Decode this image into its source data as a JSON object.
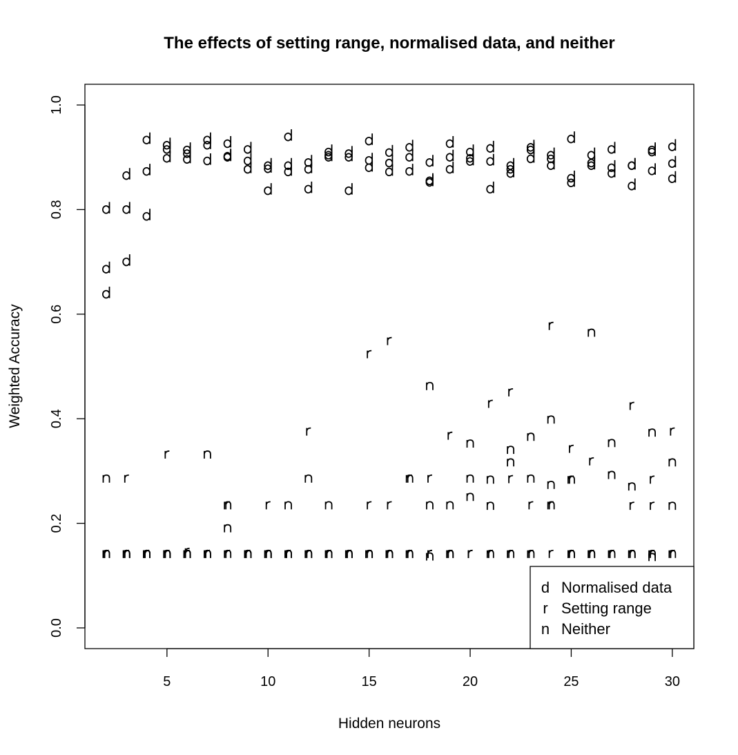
{
  "chart_data": {
    "type": "scatter",
    "title": "The effects of setting range, normalised data, and neither",
    "xlabel": "Hidden neurons",
    "ylabel": "Weighted Accuracy",
    "xlim": [
      1,
      31.2
    ],
    "ylim": [
      -0.04,
      1.04
    ],
    "xticks": [
      5,
      10,
      15,
      20,
      25,
      30
    ],
    "yticks": [
      "0.0",
      "0.2",
      "0.4",
      "0.6",
      "0.8",
      "1.0"
    ],
    "grid": false,
    "legend_position": "bottom-right",
    "series": [
      {
        "name": "Normalised data",
        "symbol": "d",
        "points": [
          [
            2,
            0.8
          ],
          [
            2,
            0.686
          ],
          [
            2,
            0.638
          ],
          [
            3,
            0.865
          ],
          [
            3,
            0.8
          ],
          [
            3,
            0.7
          ],
          [
            4,
            0.933
          ],
          [
            4,
            0.873
          ],
          [
            4,
            0.787
          ],
          [
            5,
            0.923
          ],
          [
            5,
            0.915
          ],
          [
            5,
            0.898
          ],
          [
            6,
            0.914
          ],
          [
            6,
            0.907
          ],
          [
            6,
            0.896
          ],
          [
            7,
            0.933
          ],
          [
            7,
            0.923
          ],
          [
            7,
            0.893
          ],
          [
            8,
            0.926
          ],
          [
            8,
            0.902
          ],
          [
            8,
            0.9
          ],
          [
            9,
            0.915
          ],
          [
            9,
            0.893
          ],
          [
            9,
            0.877
          ],
          [
            10,
            0.884
          ],
          [
            10,
            0.878
          ],
          [
            10,
            0.836
          ],
          [
            11,
            0.939
          ],
          [
            11,
            0.884
          ],
          [
            11,
            0.872
          ],
          [
            12,
            0.89
          ],
          [
            12,
            0.877
          ],
          [
            12,
            0.839
          ],
          [
            13,
            0.91
          ],
          [
            13,
            0.904
          ],
          [
            13,
            0.9
          ],
          [
            14,
            0.907
          ],
          [
            14,
            0.9
          ],
          [
            14,
            0.836
          ],
          [
            15,
            0.931
          ],
          [
            15,
            0.894
          ],
          [
            15,
            0.88
          ],
          [
            16,
            0.909
          ],
          [
            16,
            0.889
          ],
          [
            16,
            0.872
          ],
          [
            17,
            0.919
          ],
          [
            17,
            0.9
          ],
          [
            17,
            0.873
          ],
          [
            18,
            0.89
          ],
          [
            18,
            0.855
          ],
          [
            18,
            0.852
          ],
          [
            19,
            0.926
          ],
          [
            19,
            0.9
          ],
          [
            19,
            0.877
          ],
          [
            20,
            0.91
          ],
          [
            20,
            0.898
          ],
          [
            20,
            0.892
          ],
          [
            21,
            0.917
          ],
          [
            21,
            0.892
          ],
          [
            21,
            0.839
          ],
          [
            22,
            0.884
          ],
          [
            22,
            0.877
          ],
          [
            22,
            0.869
          ],
          [
            23,
            0.919
          ],
          [
            23,
            0.914
          ],
          [
            23,
            0.897
          ],
          [
            24,
            0.904
          ],
          [
            24,
            0.897
          ],
          [
            24,
            0.884
          ],
          [
            25,
            0.935
          ],
          [
            25,
            0.86
          ],
          [
            25,
            0.851
          ],
          [
            26,
            0.904
          ],
          [
            26,
            0.889
          ],
          [
            26,
            0.884
          ],
          [
            27,
            0.915
          ],
          [
            27,
            0.88
          ],
          [
            27,
            0.869
          ],
          [
            28,
            0.884
          ],
          [
            28,
            0.884
          ],
          [
            28,
            0.845
          ],
          [
            29,
            0.914
          ],
          [
            29,
            0.91
          ],
          [
            29,
            0.874
          ],
          [
            30,
            0.92
          ],
          [
            30,
            0.888
          ],
          [
            30,
            0.859
          ]
        ]
      },
      {
        "name": "Setting range",
        "symbol": "r",
        "points": [
          [
            2,
            0.141
          ],
          [
            2,
            0.141
          ],
          [
            2,
            0.141
          ],
          [
            3,
            0.285
          ],
          [
            3,
            0.141
          ],
          [
            3,
            0.141
          ],
          [
            4,
            0.141
          ],
          [
            4,
            0.141
          ],
          [
            4,
            0.141
          ],
          [
            5,
            0.331
          ],
          [
            5,
            0.141
          ],
          [
            5,
            0.141
          ],
          [
            6,
            0.141
          ],
          [
            6,
            0.141
          ],
          [
            6,
            0.145
          ],
          [
            7,
            0.141
          ],
          [
            7,
            0.141
          ],
          [
            7,
            0.141
          ],
          [
            8,
            0.234
          ],
          [
            8,
            0.141
          ],
          [
            8,
            0.141
          ],
          [
            9,
            0.141
          ],
          [
            9,
            0.141
          ],
          [
            9,
            0.141
          ],
          [
            10,
            0.234
          ],
          [
            10,
            0.141
          ],
          [
            10,
            0.141
          ],
          [
            11,
            0.141
          ],
          [
            11,
            0.141
          ],
          [
            11,
            0.141
          ],
          [
            12,
            0.375
          ],
          [
            12,
            0.141
          ],
          [
            12,
            0.141
          ],
          [
            13,
            0.141
          ],
          [
            13,
            0.141
          ],
          [
            13,
            0.141
          ],
          [
            14,
            0.141
          ],
          [
            14,
            0.141
          ],
          [
            14,
            0.141
          ],
          [
            15,
            0.523
          ],
          [
            15,
            0.234
          ],
          [
            15,
            0.141
          ],
          [
            16,
            0.548
          ],
          [
            16,
            0.234
          ],
          [
            16,
            0.141
          ],
          [
            17,
            0.285
          ],
          [
            17,
            0.141
          ],
          [
            17,
            0.141
          ],
          [
            18,
            0.285
          ],
          [
            18,
            0.141
          ],
          [
            18,
            0.141
          ],
          [
            19,
            0.367
          ],
          [
            19,
            0.141
          ],
          [
            19,
            0.141
          ],
          [
            20,
            0.141
          ],
          [
            20,
            0.141
          ],
          [
            20,
            0.141
          ],
          [
            21,
            0.428
          ],
          [
            21,
            0.141
          ],
          [
            21,
            0.141
          ],
          [
            22,
            0.45
          ],
          [
            22,
            0.284
          ],
          [
            22,
            0.141
          ],
          [
            23,
            0.234
          ],
          [
            23,
            0.141
          ],
          [
            23,
            0.141
          ],
          [
            24,
            0.577
          ],
          [
            24,
            0.234
          ],
          [
            24,
            0.141
          ],
          [
            25,
            0.342
          ],
          [
            25,
            0.283
          ],
          [
            25,
            0.141
          ],
          [
            26,
            0.318
          ],
          [
            26,
            0.141
          ],
          [
            26,
            0.141
          ],
          [
            27,
            0.141
          ],
          [
            27,
            0.141
          ],
          [
            27,
            0.141
          ],
          [
            28,
            0.424
          ],
          [
            28,
            0.233
          ],
          [
            28,
            0.141
          ],
          [
            29,
            0.283
          ],
          [
            29,
            0.233
          ],
          [
            29,
            0.141
          ],
          [
            30,
            0.375
          ],
          [
            30,
            0.141
          ],
          [
            30,
            0.141
          ]
        ]
      },
      {
        "name": "Neither",
        "symbol": "n",
        "points": [
          [
            2,
            0.285
          ],
          [
            2,
            0.141
          ],
          [
            2,
            0.141
          ],
          [
            3,
            0.141
          ],
          [
            3,
            0.141
          ],
          [
            3,
            0.141
          ],
          [
            4,
            0.141
          ],
          [
            4,
            0.141
          ],
          [
            4,
            0.141
          ],
          [
            5,
            0.141
          ],
          [
            5,
            0.141
          ],
          [
            5,
            0.141
          ],
          [
            6,
            0.141
          ],
          [
            6,
            0.141
          ],
          [
            6,
            0.141
          ],
          [
            7,
            0.331
          ],
          [
            7,
            0.141
          ],
          [
            7,
            0.141
          ],
          [
            8,
            0.234
          ],
          [
            8,
            0.19
          ],
          [
            8,
            0.141
          ],
          [
            9,
            0.141
          ],
          [
            9,
            0.141
          ],
          [
            9,
            0.141
          ],
          [
            10,
            0.141
          ],
          [
            10,
            0.141
          ],
          [
            10,
            0.141
          ],
          [
            11,
            0.234
          ],
          [
            11,
            0.141
          ],
          [
            11,
            0.141
          ],
          [
            12,
            0.285
          ],
          [
            12,
            0.141
          ],
          [
            12,
            0.141
          ],
          [
            13,
            0.234
          ],
          [
            13,
            0.141
          ],
          [
            13,
            0.141
          ],
          [
            14,
            0.141
          ],
          [
            14,
            0.141
          ],
          [
            14,
            0.141
          ],
          [
            15,
            0.141
          ],
          [
            15,
            0.141
          ],
          [
            15,
            0.141
          ],
          [
            16,
            0.141
          ],
          [
            16,
            0.141
          ],
          [
            16,
            0.141
          ],
          [
            17,
            0.285
          ],
          [
            17,
            0.141
          ],
          [
            17,
            0.141
          ],
          [
            18,
            0.462
          ],
          [
            18,
            0.234
          ],
          [
            18,
            0.136
          ],
          [
            19,
            0.234
          ],
          [
            19,
            0.141
          ],
          [
            19,
            0.141
          ],
          [
            20,
            0.352
          ],
          [
            20,
            0.285
          ],
          [
            20,
            0.25
          ],
          [
            21,
            0.283
          ],
          [
            21,
            0.233
          ],
          [
            21,
            0.141
          ],
          [
            22,
            0.34
          ],
          [
            22,
            0.316
          ],
          [
            22,
            0.141
          ],
          [
            23,
            0.365
          ],
          [
            23,
            0.285
          ],
          [
            23,
            0.141
          ],
          [
            24,
            0.398
          ],
          [
            24,
            0.273
          ],
          [
            24,
            0.234
          ],
          [
            25,
            0.283
          ],
          [
            25,
            0.141
          ],
          [
            25,
            0.141
          ],
          [
            26,
            0.564
          ],
          [
            26,
            0.141
          ],
          [
            26,
            0.141
          ],
          [
            27,
            0.353
          ],
          [
            27,
            0.292
          ],
          [
            27,
            0.141
          ],
          [
            28,
            0.27
          ],
          [
            28,
            0.141
          ],
          [
            28,
            0.141
          ],
          [
            29,
            0.373
          ],
          [
            29,
            0.141
          ],
          [
            29,
            0.135
          ],
          [
            30,
            0.316
          ],
          [
            30,
            0.233
          ],
          [
            30,
            0.141
          ]
        ]
      }
    ]
  }
}
